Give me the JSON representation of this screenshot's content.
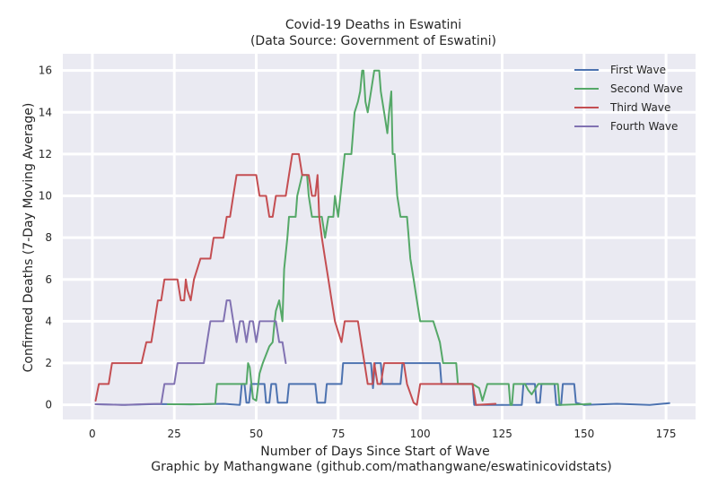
{
  "chart_data": {
    "type": "line",
    "title": "Covid-19 Deaths in Eswatini",
    "subtitle": "(Data Source: Government of Eswatini)",
    "xlabel": "Number of Days Since Start of Wave",
    "ylabel": "Confirmed Deaths (7-Day Moving Average)",
    "caption": "Graphic by Mathangwane (github.com/mathangwane/eswatinicovidstats)",
    "xlim": [
      -9,
      184
    ],
    "ylim": [
      -0.7,
      16.8
    ],
    "x_ticks": [
      0,
      25,
      50,
      75,
      100,
      125,
      150,
      175
    ],
    "y_ticks": [
      0,
      2,
      4,
      6,
      8,
      10,
      12,
      14,
      16
    ],
    "grid": true,
    "legend_position": "top-right",
    "background_color": "#eaeaf2",
    "series": [
      {
        "name": "First Wave",
        "color": "#4c72b0",
        "points": [
          [
            1,
            0.03
          ],
          [
            10,
            0.0
          ],
          [
            20,
            0.04
          ],
          [
            30,
            0.02
          ],
          [
            40,
            0.05
          ],
          [
            45,
            0.0
          ],
          [
            45.6,
            1.0
          ],
          [
            46.4,
            1.0
          ],
          [
            47,
            0.1
          ],
          [
            47.8,
            0.1
          ],
          [
            48.4,
            1.0
          ],
          [
            52.5,
            1.0
          ],
          [
            53,
            0.1
          ],
          [
            54,
            0.1
          ],
          [
            54.6,
            1.0
          ],
          [
            56,
            1.0
          ],
          [
            56.6,
            0.1
          ],
          [
            59.4,
            0.1
          ],
          [
            60,
            1.0
          ],
          [
            68,
            1.0
          ],
          [
            68.6,
            0.1
          ],
          [
            71,
            0.1
          ],
          [
            71.5,
            1.0
          ],
          [
            76,
            1.0
          ],
          [
            76.5,
            2.0
          ],
          [
            85,
            2.0
          ],
          [
            85.6,
            0.8
          ],
          [
            86.2,
            2.0
          ],
          [
            88,
            2.0
          ],
          [
            88.5,
            1.0
          ],
          [
            94,
            1.0
          ],
          [
            94.6,
            2.0
          ],
          [
            106,
            2.0
          ],
          [
            106.5,
            1.0
          ],
          [
            116,
            1.0
          ],
          [
            116.5,
            0.0
          ],
          [
            131,
            0.0
          ],
          [
            131.5,
            1.0
          ],
          [
            135,
            1.0
          ],
          [
            135.5,
            0.1
          ],
          [
            136.5,
            0.1
          ],
          [
            137,
            1.0
          ],
          [
            141,
            1.0
          ],
          [
            141.5,
            0.0
          ],
          [
            143,
            0.0
          ],
          [
            143.5,
            1.0
          ],
          [
            147,
            1.0
          ],
          [
            147.5,
            0.1
          ],
          [
            150,
            0.0
          ],
          [
            160,
            0.05
          ],
          [
            170,
            0.0
          ],
          [
            176,
            0.08
          ]
        ]
      },
      {
        "name": "Second Wave",
        "color": "#55a868",
        "points": [
          [
            23,
            0.03
          ],
          [
            33,
            0.03
          ],
          [
            37.5,
            0.05
          ],
          [
            38,
            1.0
          ],
          [
            47,
            1.0
          ],
          [
            47.5,
            2.0
          ],
          [
            48,
            1.8
          ],
          [
            49,
            0.3
          ],
          [
            50,
            0.2
          ],
          [
            51,
            1.5
          ],
          [
            52,
            2.0
          ],
          [
            54,
            2.8
          ],
          [
            55,
            3.0
          ],
          [
            55.6,
            4.0
          ],
          [
            56,
            4.5
          ],
          [
            57,
            5.0
          ],
          [
            57.5,
            4.5
          ],
          [
            58,
            4.0
          ],
          [
            58.5,
            6.5
          ],
          [
            59.5,
            8.0
          ],
          [
            60,
            9.0
          ],
          [
            62,
            9.0
          ],
          [
            62.5,
            10.0
          ],
          [
            64,
            11.0
          ],
          [
            65.5,
            11.0
          ],
          [
            66,
            10.0
          ],
          [
            67,
            9.0
          ],
          [
            70,
            9.0
          ],
          [
            71,
            8.0
          ],
          [
            72,
            9.0
          ],
          [
            73.5,
            9.0
          ],
          [
            74,
            10.0
          ],
          [
            75,
            9.0
          ],
          [
            76,
            10.5
          ],
          [
            77,
            12.0
          ],
          [
            79,
            12.0
          ],
          [
            79.5,
            13.0
          ],
          [
            80,
            14.0
          ],
          [
            81,
            14.5
          ],
          [
            81.7,
            15.0
          ],
          [
            82.3,
            16.0
          ],
          [
            82.7,
            16.0
          ],
          [
            83.3,
            14.5
          ],
          [
            84,
            14.0
          ],
          [
            85,
            15.0
          ],
          [
            86,
            16.0
          ],
          [
            87.5,
            16.0
          ],
          [
            88,
            15.0
          ],
          [
            89,
            14.0
          ],
          [
            90,
            13.0
          ],
          [
            90.5,
            14.0
          ],
          [
            91.2,
            15.0
          ],
          [
            91.6,
            12.0
          ],
          [
            92.2,
            12.0
          ],
          [
            92.6,
            11.0
          ],
          [
            93,
            10.0
          ],
          [
            94,
            9.0
          ],
          [
            96,
            9.0
          ],
          [
            96.5,
            8.0
          ],
          [
            97,
            7.0
          ],
          [
            98,
            6.0
          ],
          [
            99,
            5.0
          ],
          [
            100,
            4.0
          ],
          [
            104,
            4.0
          ],
          [
            106,
            3.0
          ],
          [
            107,
            2.0
          ],
          [
            111,
            2.0
          ],
          [
            111.5,
            1.0
          ],
          [
            116,
            1.0
          ],
          [
            117,
            0.9
          ],
          [
            118,
            0.8
          ],
          [
            119,
            0.2
          ],
          [
            120.5,
            1.0
          ],
          [
            127,
            1.0
          ],
          [
            127.5,
            0.0
          ],
          [
            128,
            0.0
          ],
          [
            128.5,
            1.0
          ],
          [
            132,
            1.0
          ],
          [
            133,
            0.7
          ],
          [
            134,
            0.5
          ],
          [
            136,
            1.0
          ],
          [
            142,
            1.0
          ],
          [
            142.5,
            0.0
          ],
          [
            150,
            0.03
          ],
          [
            152,
            0.05
          ]
        ]
      },
      {
        "name": "Third Wave",
        "color": "#c44e52",
        "points": [
          [
            1,
            0.2
          ],
          [
            2,
            1.0
          ],
          [
            5,
            1.0
          ],
          [
            6,
            2.0
          ],
          [
            15,
            2.0
          ],
          [
            16.5,
            3.0
          ],
          [
            18,
            3.0
          ],
          [
            19,
            4.0
          ],
          [
            20,
            5.0
          ],
          [
            21,
            5.0
          ],
          [
            22,
            6.0
          ],
          [
            26,
            6.0
          ],
          [
            27,
            5.0
          ],
          [
            28,
            5.0
          ],
          [
            28.5,
            6.0
          ],
          [
            29,
            5.5
          ],
          [
            30,
            5.0
          ],
          [
            31,
            6.0
          ],
          [
            32,
            6.5
          ],
          [
            33,
            7.0
          ],
          [
            36,
            7.0
          ],
          [
            37,
            8.0
          ],
          [
            40,
            8.0
          ],
          [
            41,
            9.0
          ],
          [
            42,
            9.0
          ],
          [
            43,
            10.0
          ],
          [
            44,
            11.0
          ],
          [
            50,
            11.0
          ],
          [
            51,
            10.0
          ],
          [
            53,
            10.0
          ],
          [
            54,
            9.0
          ],
          [
            55,
            9.0
          ],
          [
            56,
            10.0
          ],
          [
            59,
            10.0
          ],
          [
            60,
            11.0
          ],
          [
            61,
            12.0
          ],
          [
            63,
            12.0
          ],
          [
            64,
            11.0
          ],
          [
            66,
            11.0
          ],
          [
            67,
            10.0
          ],
          [
            68,
            10.0
          ],
          [
            68.7,
            11.0
          ],
          [
            69.2,
            9.0
          ],
          [
            70,
            8.0
          ],
          [
            71,
            7.0
          ],
          [
            72,
            6.0
          ],
          [
            73,
            5.0
          ],
          [
            74,
            4.0
          ],
          [
            75,
            3.5
          ],
          [
            76,
            3.0
          ],
          [
            77,
            4.0
          ],
          [
            81,
            4.0
          ],
          [
            82,
            3.0
          ],
          [
            83,
            2.0
          ],
          [
            84,
            1.0
          ],
          [
            85.5,
            1.0
          ],
          [
            86,
            2.0
          ],
          [
            87,
            1.0
          ],
          [
            88,
            1.0
          ],
          [
            89,
            2.0
          ],
          [
            95,
            2.0
          ],
          [
            96,
            1.0
          ],
          [
            98,
            0.1
          ],
          [
            99,
            0.0
          ],
          [
            100,
            1.0
          ],
          [
            111,
            1.0
          ],
          [
            116,
            1.0
          ],
          [
            117,
            0.0
          ],
          [
            123,
            0.05
          ]
        ]
      },
      {
        "name": "Fourth Wave",
        "color": "#8172b2",
        "points": [
          [
            1,
            0.03
          ],
          [
            9,
            0.0
          ],
          [
            17,
            0.04
          ],
          [
            21,
            0.05
          ],
          [
            22,
            1.0
          ],
          [
            25,
            1.0
          ],
          [
            26,
            2.0
          ],
          [
            34,
            2.0
          ],
          [
            35,
            3.0
          ],
          [
            36,
            4.0
          ],
          [
            40,
            4.0
          ],
          [
            41,
            5.0
          ],
          [
            42,
            5.0
          ],
          [
            43,
            4.0
          ],
          [
            44,
            3.0
          ],
          [
            45,
            4.0
          ],
          [
            46,
            4.0
          ],
          [
            47,
            3.0
          ],
          [
            48,
            4.0
          ],
          [
            49,
            4.0
          ],
          [
            50,
            3.0
          ],
          [
            51,
            4.0
          ],
          [
            56,
            4.0
          ],
          [
            57,
            3.0
          ],
          [
            58,
            3.0
          ],
          [
            59,
            2.0
          ]
        ]
      }
    ]
  }
}
